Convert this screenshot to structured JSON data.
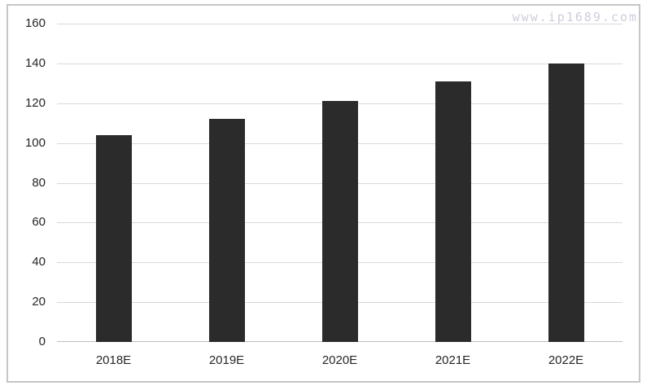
{
  "watermark": {
    "text": "www.ip1689.com",
    "color": "#cdcedd"
  },
  "chart_data": {
    "type": "bar",
    "categories": [
      "2018E",
      "2019E",
      "2020E",
      "2021E",
      "2022E"
    ],
    "values": [
      104,
      112,
      121,
      131,
      140
    ],
    "title": "",
    "xlabel": "",
    "ylabel": "",
    "ylim": [
      0,
      160
    ],
    "y_ticks": [
      0,
      20,
      40,
      60,
      80,
      100,
      120,
      140,
      160
    ],
    "grid": true,
    "legend": "none",
    "bar_color": "#2b2b2b",
    "gridline_color": "#d9d9d9",
    "axis_line_color": "#bfbfbf",
    "text_color": "#262626",
    "frame_border_color": "#c6c6c6"
  }
}
